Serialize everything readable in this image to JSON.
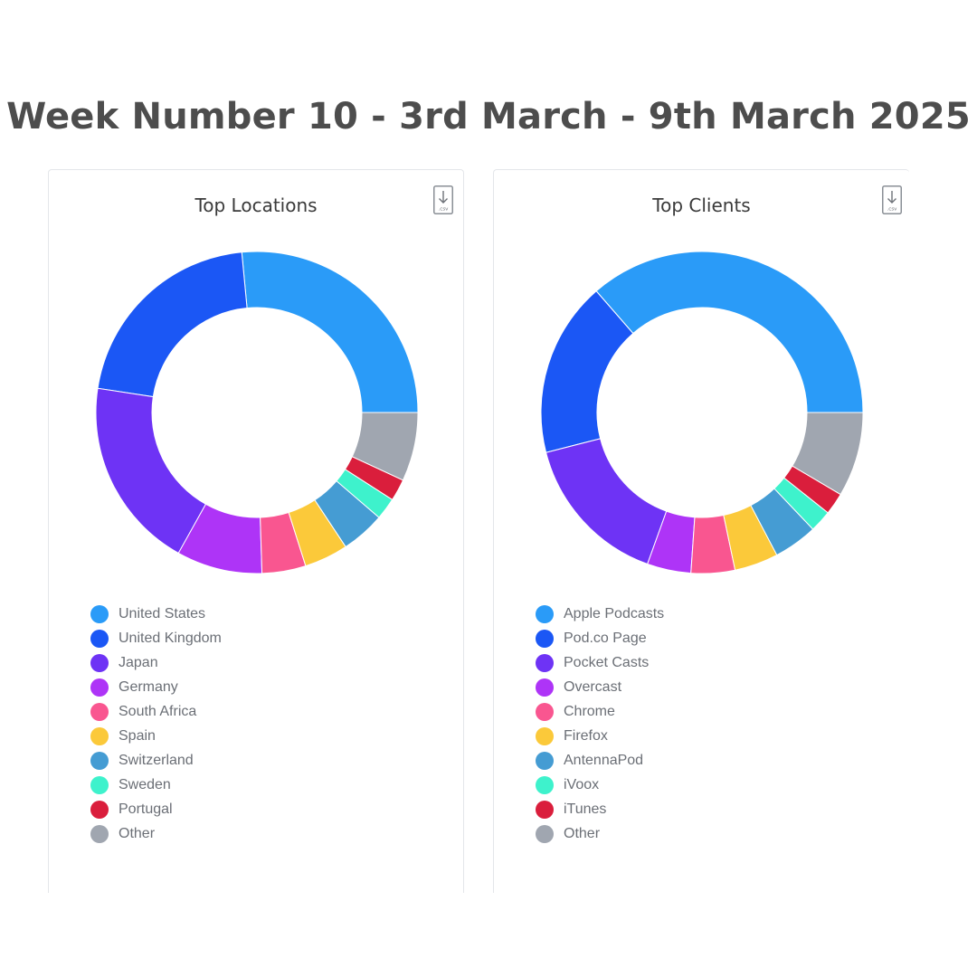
{
  "page": {
    "title": "Week Number 10 - 3rd March - 9th March 2025"
  },
  "colors": {
    "light-blue": "#2a9bf8",
    "royal-blue": "#1b57f5",
    "violet": "#6e33f5",
    "purple": "#ae34f7",
    "pink": "#f95690",
    "yellow": "#fbc93a",
    "steel-blue": "#459cd3",
    "aqua": "#3ef2cc",
    "red": "#da1e3c",
    "gray": "#a0a6b0"
  },
  "csv_icon": {
    "icon": "download-csv-icon",
    "label": ".csv"
  },
  "chart_data": [
    {
      "type": "pie",
      "title": "Top Locations",
      "categories": [
        "United States",
        "United Kingdom",
        "Japan",
        "Germany",
        "South Africa",
        "Spain",
        "Switzerland",
        "Sweden",
        "Portugal",
        "Other"
      ],
      "values": [
        26.5,
        21.1,
        19.3,
        8.6,
        4.4,
        4.4,
        4.4,
        2.2,
        2.2,
        6.9
      ],
      "colors": [
        "#2a9bf8",
        "#1b57f5",
        "#6e33f5",
        "#ae34f7",
        "#f95690",
        "#fbc93a",
        "#459cd3",
        "#3ef2cc",
        "#da1e3c",
        "#a0a6b0"
      ],
      "donut": true,
      "start": "3 o'clock, counter-clockwise",
      "legend": "bottom"
    },
    {
      "type": "pie",
      "title": "Top Clients",
      "categories": [
        "Apple Podcasts",
        "Pod.co Page",
        "Pocket Casts",
        "Overcast",
        "Chrome",
        "Firefox",
        "AntennaPod",
        "iVoox",
        "iTunes",
        "Other"
      ],
      "values": [
        36.4,
        17.6,
        15.5,
        4.4,
        4.4,
        4.4,
        4.4,
        2.2,
        2.2,
        8.5
      ],
      "colors": [
        "#2a9bf8",
        "#1b57f5",
        "#6e33f5",
        "#ae34f7",
        "#f95690",
        "#fbc93a",
        "#459cd3",
        "#3ef2cc",
        "#da1e3c",
        "#a0a6b0"
      ],
      "donut": true,
      "start": "3 o'clock, counter-clockwise",
      "legend": "bottom"
    }
  ]
}
